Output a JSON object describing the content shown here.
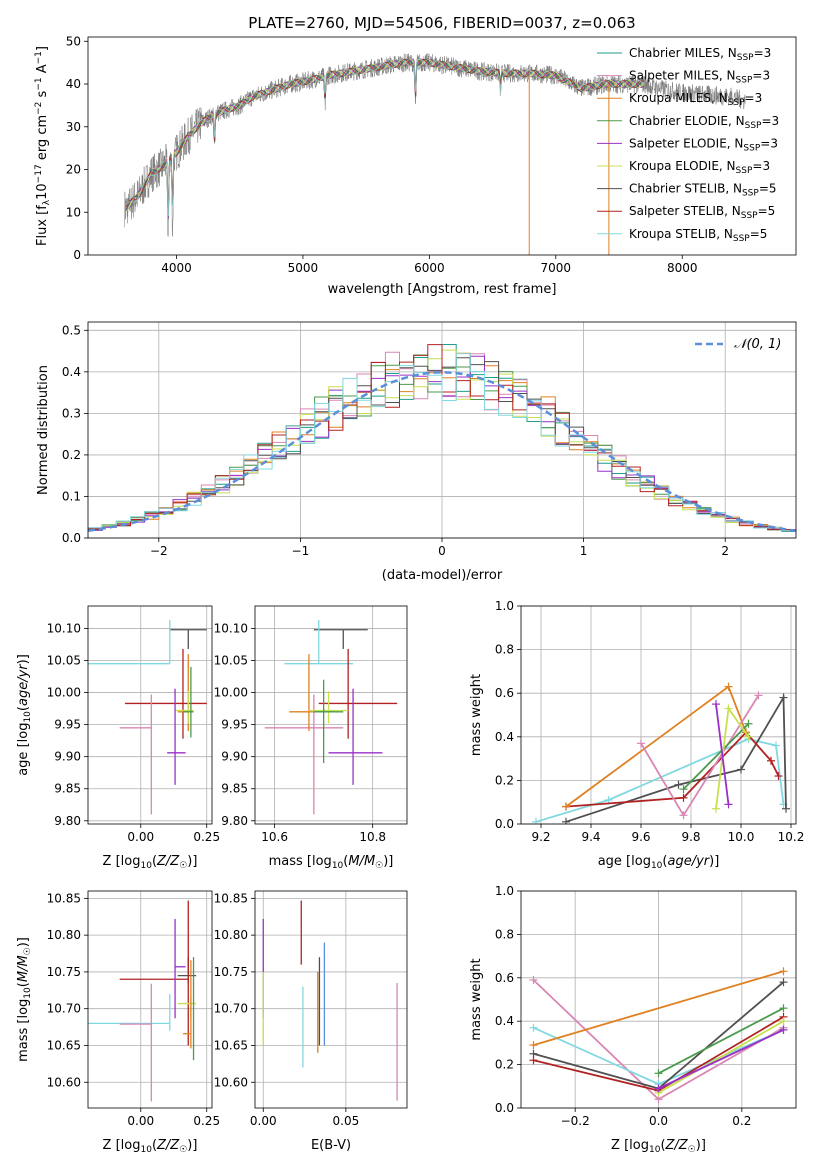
{
  "figure_title": "PLATE=2760, MJD=54506, FIBERID=0037, z=0.063",
  "colors": {
    "chabrier_miles": "#1f9e89",
    "salpeter_miles": "#d986b4",
    "kroupa_miles": "#e08020",
    "chabrier_elodie": "#4c9a4c",
    "salpeter_elodie": "#9b30c8",
    "kroupa_elodie": "#c8e050",
    "chabrier_stelib": "#505050",
    "salpeter_stelib": "#b22222",
    "kroupa_stelib": "#80d8e0",
    "normal_curve": "#5b8fd8",
    "grid": "#b0b0b0"
  },
  "chart_data": [
    {
      "id": "spectrum",
      "type": "line",
      "xlabel": "wavelength [Angstrom, rest frame]",
      "ylabel": "Flux [f_λ 10^-17 erg cm^-2 s^-1 A^-1]",
      "xlim": [
        3300,
        8900
      ],
      "ylim": [
        0,
        51
      ],
      "xticks": [
        4000,
        5000,
        6000,
        7000,
        8000
      ],
      "yticks": [
        0,
        10,
        20,
        30,
        40,
        50
      ],
      "legend_position": "right",
      "legend": [
        {
          "name": "Chabrier MILES, N_SSP=3",
          "color": "chabrier_miles"
        },
        {
          "name": "Salpeter MILES, N_SSP=3",
          "color": "salpeter_miles"
        },
        {
          "name": "Kroupa MILES, N_SSP=3",
          "color": "kroupa_miles"
        },
        {
          "name": "Chabrier ELODIE, N_SSP=3",
          "color": "chabrier_elodie"
        },
        {
          "name": "Salpeter ELODIE, N_SSP=3",
          "color": "salpeter_elodie"
        },
        {
          "name": "Kroupa ELODIE, N_SSP=3",
          "color": "kroupa_elodie"
        },
        {
          "name": "Chabrier STELIB, N_SSP=5",
          "color": "chabrier_stelib"
        },
        {
          "name": "Salpeter STELIB, N_SSP=5",
          "color": "salpeter_stelib"
        },
        {
          "name": "Kroupa STELIB, N_SSP=5",
          "color": "kroupa_stelib"
        }
      ],
      "continuum": [
        [
          3600,
          11
        ],
        [
          3700,
          14
        ],
        [
          3800,
          19
        ],
        [
          3900,
          21
        ],
        [
          4000,
          24
        ],
        [
          4100,
          28
        ],
        [
          4200,
          31
        ],
        [
          4300,
          33
        ],
        [
          4400,
          34
        ],
        [
          4500,
          35
        ],
        [
          4600,
          37
        ],
        [
          4700,
          38
        ],
        [
          4800,
          39
        ],
        [
          4900,
          40
        ],
        [
          5000,
          40.5
        ],
        [
          5200,
          42
        ],
        [
          5400,
          43
        ],
        [
          5600,
          44
        ],
        [
          5800,
          45
        ],
        [
          6000,
          45
        ],
        [
          6200,
          44
        ],
        [
          6400,
          43
        ],
        [
          6600,
          42.5
        ],
        [
          6800,
          42.5
        ],
        [
          7000,
          42
        ],
        [
          7200,
          39
        ],
        [
          7400,
          40
        ],
        [
          7600,
          40
        ],
        [
          7700,
          40
        ],
        [
          7800,
          39
        ],
        [
          8000,
          38
        ],
        [
          8200,
          37.5
        ],
        [
          8400,
          37
        ],
        [
          8500,
          36
        ]
      ],
      "absorption_lines": [
        [
          3934,
          4
        ],
        [
          3969,
          6
        ],
        [
          4300,
          25
        ],
        [
          5175,
          35
        ],
        [
          5890,
          35
        ],
        [
          6563,
          38
        ]
      ],
      "spikes": [
        [
          6790,
          0
        ],
        [
          7420,
          0
        ],
        [
          7420,
          0
        ]
      ]
    },
    {
      "id": "residuals",
      "type": "bar",
      "xlabel": "(data-model)/error",
      "ylabel": "Normed distribution",
      "xlim": [
        -2.5,
        2.5
      ],
      "ylim": [
        0,
        0.52
      ],
      "xticks": [
        -2,
        -1,
        0,
        1,
        2
      ],
      "yticks": [
        0.0,
        0.1,
        0.2,
        0.3,
        0.4,
        0.5
      ],
      "legend": [
        {
          "name": "N(0,1)",
          "color": "normal_curve"
        }
      ],
      "legend_position": "top-right",
      "bin_width": 0.1,
      "bin_start": -2.5
    },
    {
      "id": "age-vs-Z",
      "type": "scatter",
      "xlabel": "Z [log10(Z/Z_sun)]",
      "ylabel": "age [log10(age/yr)]",
      "xlim": [
        -0.2,
        0.27
      ],
      "ylim": [
        9.795,
        10.135
      ],
      "xticks": [
        0.0,
        0.25
      ],
      "yticks": [
        9.8,
        9.85,
        9.9,
        9.95,
        10.0,
        10.05,
        10.1
      ],
      "points": [
        {
          "color": "chabrier_stelib",
          "x": 0.18,
          "y": 10.098,
          "xerr": [
            0.07,
            0.07
          ],
          "yerr": [
            0.03,
            0.0
          ]
        },
        {
          "color": "kroupa_stelib",
          "x": 0.11,
          "y": 10.045,
          "xerr": [
            0.33,
            0.0
          ],
          "yerr": [
            0.0,
            0.068
          ]
        },
        {
          "color": "salpeter_stelib",
          "x": 0.16,
          "y": 9.983,
          "xerr": [
            0.22,
            0.09
          ],
          "yerr": [
            0.055,
            0.085
          ]
        },
        {
          "color": "salpeter_miles",
          "x": 0.04,
          "y": 9.945,
          "xerr": [
            0.12,
            0.0
          ],
          "yerr": [
            0.135,
            0.052
          ]
        },
        {
          "color": "kroupa_miles",
          "x": 0.18,
          "y": 9.97,
          "xerr": [
            0.04,
            0.02
          ],
          "yerr": [
            0.03,
            0.09
          ]
        },
        {
          "color": "kroupa_elodie",
          "x": 0.18,
          "y": 9.972,
          "xerr": [
            0.05,
            0.02
          ],
          "yerr": [
            0.02,
            0.03
          ]
        },
        {
          "color": "chabrier_elodie",
          "x": 0.19,
          "y": 9.97,
          "xerr": [
            0.03,
            0.01
          ],
          "yerr": [
            0.04,
            0.07
          ]
        },
        {
          "color": "salpeter_elodie",
          "x": 0.13,
          "y": 9.906,
          "xerr": [
            0.03,
            0.04
          ],
          "yerr": [
            0.05,
            0.1
          ]
        }
      ]
    },
    {
      "id": "age-vs-mass",
      "type": "scatter",
      "xlabel": "mass [log10(M/M_sun)]",
      "ylabel": "",
      "xlim": [
        10.56,
        10.87
      ],
      "ylim": [
        9.795,
        10.135
      ],
      "xticks": [
        10.6,
        10.8
      ],
      "yticks": [
        9.8,
        9.85,
        9.9,
        9.95,
        10.0,
        10.05,
        10.1
      ],
      "points": [
        {
          "color": "chabrier_stelib",
          "x": 10.74,
          "y": 10.098,
          "xerr": [
            0.06,
            0.05
          ],
          "yerr": [
            0.03,
            0.0
          ]
        },
        {
          "color": "kroupa_stelib",
          "x": 10.69,
          "y": 10.045,
          "xerr": [
            0.07,
            0.07
          ],
          "yerr": [
            0.0,
            0.068
          ]
        },
        {
          "color": "salpeter_stelib",
          "x": 10.75,
          "y": 9.983,
          "xerr": [
            0.06,
            0.1
          ],
          "yerr": [
            0.055,
            0.085
          ]
        },
        {
          "color": "salpeter_miles",
          "x": 10.68,
          "y": 9.945,
          "xerr": [
            0.1,
            0.06
          ],
          "yerr": [
            0.135,
            0.052
          ]
        },
        {
          "color": "kroupa_miles",
          "x": 10.67,
          "y": 9.97,
          "xerr": [
            0.04,
            0.05
          ],
          "yerr": [
            0.03,
            0.09
          ]
        },
        {
          "color": "kroupa_elodie",
          "x": 10.71,
          "y": 9.972,
          "xerr": [
            0.04,
            0.04
          ],
          "yerr": [
            0.02,
            0.03
          ]
        },
        {
          "color": "chabrier_elodie",
          "x": 10.7,
          "y": 9.97,
          "xerr": [
            0.02,
            0.04
          ],
          "yerr": [
            0.08,
            0.05
          ]
        },
        {
          "color": "salpeter_elodie",
          "x": 10.76,
          "y": 9.906,
          "xerr": [
            0.05,
            0.06
          ],
          "yerr": [
            0.05,
            0.1
          ]
        }
      ]
    },
    {
      "id": "mass-weight-vs-age",
      "type": "line",
      "xlabel": "age [log10(age/yr)]",
      "ylabel": "mass weight",
      "xlim": [
        9.12,
        10.22
      ],
      "ylim": [
        0,
        1.0
      ],
      "xticks": [
        9.2,
        9.4,
        9.6,
        9.8,
        10.0,
        10.2
      ],
      "yticks": [
        0.0,
        0.2,
        0.4,
        0.6,
        0.8,
        1.0
      ],
      "series": [
        {
          "color": "kroupa_stelib",
          "x": [
            9.18,
            9.47,
            10.03,
            10.14,
            10.17
          ],
          "y": [
            0.01,
            0.11,
            0.39,
            0.36,
            0.09
          ]
        },
        {
          "color": "chabrier_stelib",
          "x": [
            9.3,
            9.75,
            10.0,
            10.17,
            10.18
          ],
          "y": [
            0.01,
            0.18,
            0.25,
            0.58,
            0.07
          ]
        },
        {
          "color": "salpeter_stelib",
          "x": [
            9.3,
            9.77,
            10.02,
            10.12,
            10.15
          ],
          "y": [
            0.08,
            0.12,
            0.42,
            0.29,
            0.22
          ]
        },
        {
          "color": "kroupa_miles",
          "x": [
            9.3,
            9.95,
            10.02
          ],
          "y": [
            0.08,
            0.63,
            0.42
          ]
        },
        {
          "color": "salpeter_miles",
          "x": [
            9.6,
            9.77,
            10.07
          ],
          "y": [
            0.37,
            0.04,
            0.59
          ]
        },
        {
          "color": "chabrier_elodie",
          "x": [
            9.77,
            10.03
          ],
          "y": [
            0.16,
            0.46
          ]
        },
        {
          "color": "kroupa_elodie",
          "x": [
            9.9,
            9.95,
            10.03
          ],
          "y": [
            0.07,
            0.53,
            0.4
          ]
        },
        {
          "color": "salpeter_elodie",
          "x": [
            9.9,
            9.95
          ],
          "y": [
            0.55,
            0.09
          ]
        }
      ]
    },
    {
      "id": "mass-vs-Z",
      "type": "scatter",
      "xlabel": "Z [log10(Z/Z_sun)]",
      "ylabel": "mass [log10(M/M_sun)]",
      "xlim": [
        -0.2,
        0.27
      ],
      "ylim": [
        10.565,
        10.86
      ],
      "xticks": [
        0.0,
        0.25
      ],
      "yticks": [
        10.6,
        10.65,
        10.7,
        10.75,
        10.8,
        10.85
      ],
      "points": [
        {
          "color": "chabrier_stelib",
          "x": 0.18,
          "y": 10.745,
          "xerr": [
            0.04,
            0.03
          ],
          "yerr": [
            0.01,
            0.025
          ]
        },
        {
          "color": "salpeter_stelib",
          "x": 0.18,
          "y": 10.74,
          "xerr": [
            0.26,
            0.0
          ],
          "yerr": [
            0.09,
            0.107
          ]
        },
        {
          "color": "salpeter_elodie",
          "x": 0.13,
          "y": 10.757,
          "xerr": [
            0.0,
            0.04
          ],
          "yerr": [
            0.07,
            0.065
          ]
        },
        {
          "color": "kroupa_elodie",
          "x": 0.19,
          "y": 10.707,
          "xerr": [
            0.05,
            0.02
          ],
          "yerr": [
            0.02,
            0.01
          ]
        },
        {
          "color": "kroupa_stelib",
          "x": 0.11,
          "y": 10.68,
          "xerr": [
            0.33,
            0.0
          ],
          "yerr": [
            0.01,
            0.04
          ]
        },
        {
          "color": "kroupa_miles",
          "x": 0.19,
          "y": 10.666,
          "xerr": [
            0.03,
            0.0
          ],
          "yerr": [
            0.02,
            0.1
          ]
        },
        {
          "color": "salpeter_miles",
          "x": 0.04,
          "y": 10.679,
          "xerr": [
            0.12,
            0.0
          ],
          "yerr": [
            0.105,
            0.055
          ]
        },
        {
          "color": "chabrier_elodie",
          "x": 0.2,
          "y": 10.7,
          "xerr": [
            0.0,
            0.0
          ],
          "yerr": [
            0.07,
            0.07
          ]
        }
      ]
    },
    {
      "id": "mass-vs-ebv",
      "type": "scatter",
      "xlabel": "E(B-V)",
      "ylabel": "",
      "xlim": [
        -0.005,
        0.087
      ],
      "ylim": [
        10.565,
        10.86
      ],
      "xticks": [
        0.0,
        0.05
      ],
      "yticks": [
        10.6,
        10.65,
        10.7,
        10.75,
        10.8,
        10.85
      ],
      "points": [
        {
          "color": "salpeter_elodie",
          "x": 0.0,
          "y": 10.757,
          "xerr": [
            0,
            0
          ],
          "yerr": [
            0.07,
            0.065
          ]
        },
        {
          "color": "kroupa_elodie",
          "x": 0.0,
          "y": 10.7,
          "xerr": [
            0,
            0
          ],
          "yerr": [
            0.05,
            0.05
          ]
        },
        {
          "color": "salpeter_stelib",
          "x": 0.023,
          "y": 10.79,
          "xerr": [
            0,
            0
          ],
          "yerr": [
            0.03,
            0.057
          ]
        },
        {
          "color": "kroupa_stelib",
          "x": 0.024,
          "y": 10.68,
          "xerr": [
            0,
            0
          ],
          "yerr": [
            0.06,
            0.05
          ]
        },
        {
          "color": "kroupa_miles",
          "x": 0.033,
          "y": 10.69,
          "xerr": [
            0,
            0
          ],
          "yerr": [
            0.05,
            0.06
          ]
        },
        {
          "color": "chabrier_stelib",
          "x": 0.034,
          "y": 10.7,
          "xerr": [
            0,
            0
          ],
          "yerr": [
            0.05,
            0.07
          ]
        },
        {
          "color": "normal_curve",
          "x": 0.037,
          "y": 10.72,
          "xerr": [
            0,
            0
          ],
          "yerr": [
            0.07,
            0.07
          ]
        },
        {
          "color": "salpeter_miles",
          "x": 0.081,
          "y": 10.65,
          "xerr": [
            0,
            0
          ],
          "yerr": [
            0.075,
            0.085
          ]
        }
      ]
    },
    {
      "id": "mass-weight-vs-Z",
      "type": "line",
      "xlabel": "Z [log10(Z/Z_sun)]",
      "ylabel": "mass weight",
      "xlim": [
        -0.33,
        0.33
      ],
      "ylim": [
        0,
        1.0
      ],
      "xticks": [
        -0.2,
        0.0,
        0.2
      ],
      "yticks": [
        0.0,
        0.2,
        0.4,
        0.6,
        0.8,
        1.0
      ],
      "series": [
        {
          "color": "salpeter_miles",
          "x": [
            -0.3,
            0.0,
            0.3
          ],
          "y": [
            0.59,
            0.04,
            0.37
          ]
        },
        {
          "color": "kroupa_stelib",
          "x": [
            -0.3,
            0.0,
            0.3
          ],
          "y": [
            0.37,
            0.11,
            0.36
          ]
        },
        {
          "color": "kroupa_miles",
          "x": [
            -0.3,
            0.3
          ],
          "y": [
            0.29,
            0.63
          ]
        },
        {
          "color": "chabrier_stelib",
          "x": [
            -0.3,
            0.0,
            0.3
          ],
          "y": [
            0.25,
            0.09,
            0.58
          ]
        },
        {
          "color": "salpeter_stelib",
          "x": [
            -0.3,
            0.0,
            0.3
          ],
          "y": [
            0.22,
            0.08,
            0.42
          ]
        },
        {
          "color": "chabrier_elodie",
          "x": [
            0.0,
            0.3
          ],
          "y": [
            0.16,
            0.46
          ]
        },
        {
          "color": "kroupa_elodie",
          "x": [
            0.0,
            0.3
          ],
          "y": [
            0.07,
            0.4
          ]
        },
        {
          "color": "salpeter_elodie",
          "x": [
            0.0,
            0.3
          ],
          "y": [
            0.09,
            0.36
          ]
        }
      ]
    }
  ]
}
